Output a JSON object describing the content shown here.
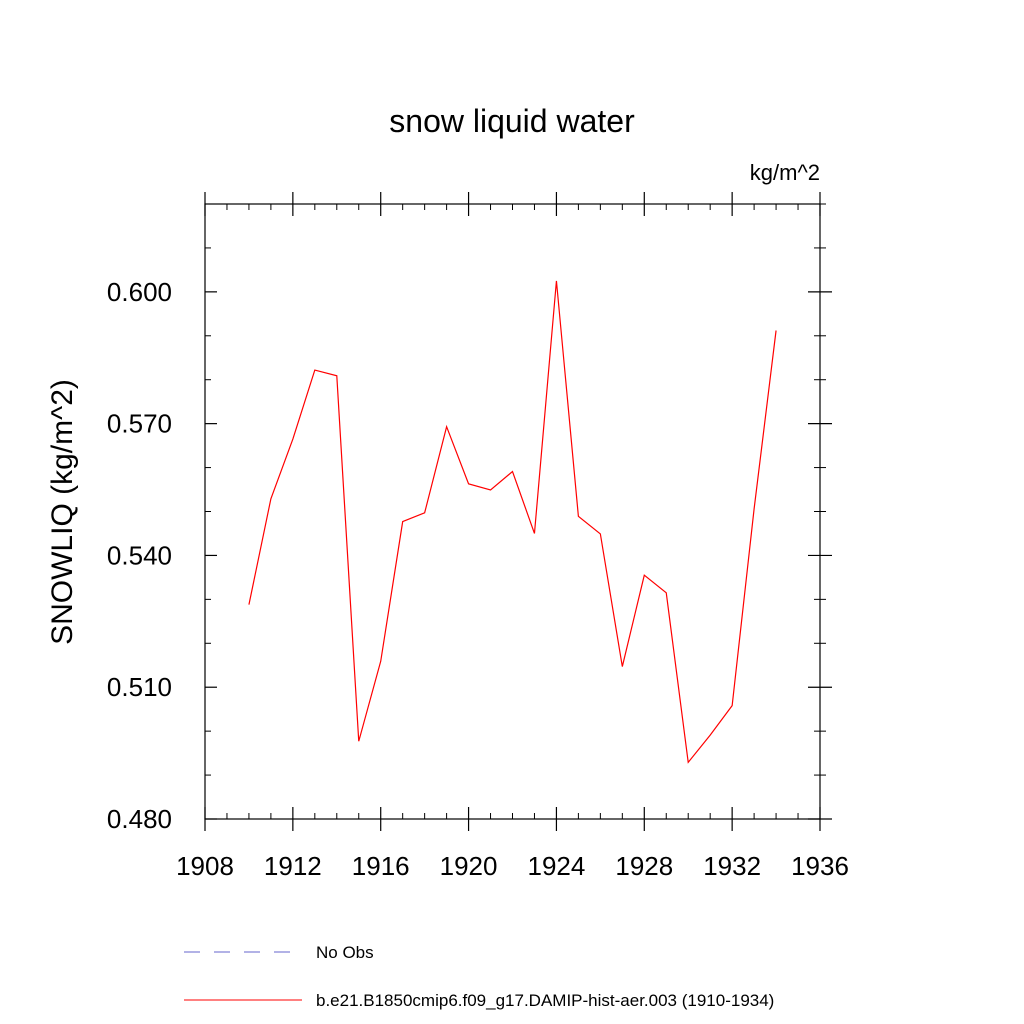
{
  "chart_data": {
    "type": "line",
    "title": "snow liquid water",
    "units_label": "kg/m^2",
    "ylabel": "SNOWLIQ  (kg/m^2)",
    "xlabel": "",
    "xlim": [
      1908,
      1936
    ],
    "ylim": [
      0.48,
      0.62
    ],
    "x_ticks": [
      1908,
      1912,
      1916,
      1920,
      1924,
      1928,
      1932,
      1936
    ],
    "x_tick_labels": [
      "1908",
      "1912",
      "1916",
      "1920",
      "1924",
      "1928",
      "1932",
      "1936"
    ],
    "y_ticks": [
      0.48,
      0.51,
      0.54,
      0.57,
      0.6
    ],
    "y_tick_labels": [
      "0.480",
      "0.510",
      "0.540",
      "0.570",
      "0.600"
    ],
    "grid": false,
    "legend_position": "bottom",
    "series": [
      {
        "name": "b.e21.B1850cmip6.f09_g17.DAMIP-hist-aer.003 (1910-1934)",
        "color": "#ff0000",
        "dash": "solid",
        "x": [
          1910,
          1911,
          1912,
          1913,
          1914,
          1915,
          1916,
          1917,
          1918,
          1919,
          1920,
          1921,
          1922,
          1923,
          1924,
          1925,
          1926,
          1927,
          1928,
          1929,
          1930,
          1931,
          1932,
          1933,
          1934
        ],
        "y": [
          0.5288,
          0.5529,
          0.5665,
          0.5822,
          0.5809,
          0.4977,
          0.5159,
          0.5477,
          0.5497,
          0.5693,
          0.5563,
          0.5549,
          0.5591,
          0.545,
          0.6025,
          0.5489,
          0.5449,
          0.5147,
          0.5355,
          0.5315,
          0.4929,
          0.4991,
          0.5058,
          0.5506,
          0.5912
        ]
      }
    ],
    "legend": [
      {
        "label": "No Obs",
        "color": "#6666cc",
        "dash": "dashed"
      },
      {
        "label": "b.e21.B1850cmip6.f09_g17.DAMIP-hist-aer.003 (1910-1934)",
        "color": "#ff0000",
        "dash": "solid"
      }
    ]
  }
}
